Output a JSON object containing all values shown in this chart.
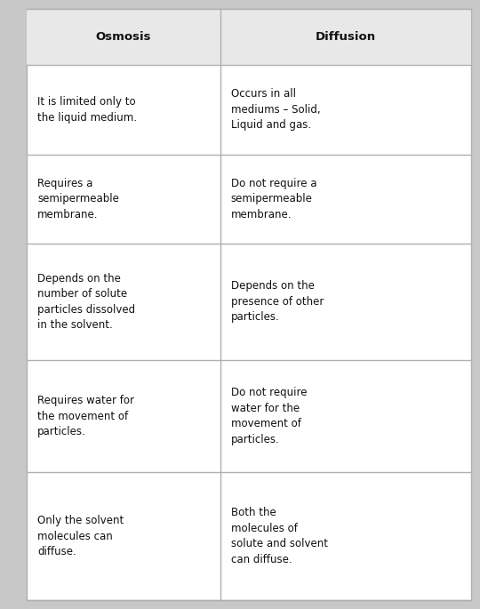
{
  "header": [
    "Osmosis",
    "Diffusion"
  ],
  "rows": [
    [
      "It is limited only to\nthe liquid medium.",
      "Occurs in all\nmediums – Solid,\nLiquid and gas."
    ],
    [
      "Requires a\nsemipermeable\nmembrane.",
      "Do not require a\nsemipermeable\nmembrane."
    ],
    [
      "Depends on the\nnumber of solute\nparticles dissolved\nin the solvent.",
      "Depends on the\npresence of other\nparticles."
    ],
    [
      "Requires water for\nthe movement of\nparticles.",
      "Do not require\nwater for the\nmovement of\nparticles."
    ],
    [
      "Only the solvent\nmolecules can\ndiffuse.",
      "Both the\nmolecules of\nsolute and solvent\ncan diffuse."
    ]
  ],
  "header_bg": "#e8e8e8",
  "row_bg": "#ffffff",
  "border_color": "#b0b0b0",
  "header_font_size": 9.5,
  "cell_font_size": 8.5,
  "fig_bg": "#c8c8c8",
  "table_bg": "#ffffff",
  "fig_width": 5.4,
  "fig_height": 6.85,
  "dpi": 100
}
